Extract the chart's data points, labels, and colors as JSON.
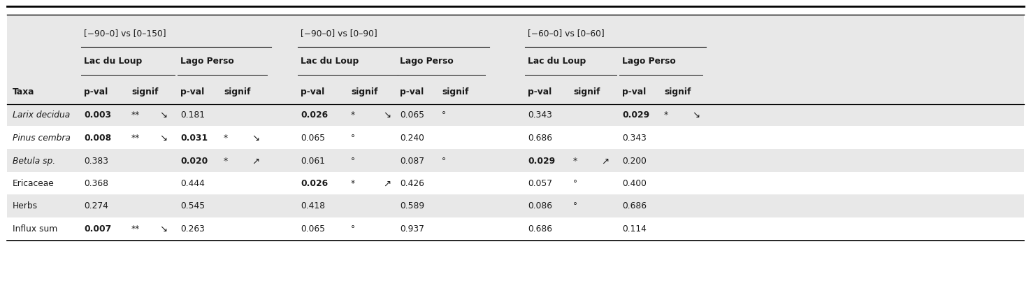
{
  "headers_level1": [
    "−90–0] vs [0–150]",
    "[−90–0] vs [0–90]",
    "[−60–0] vs [0–60]"
  ],
  "rows": [
    {
      "taxa": "Larix decidua",
      "italic": true,
      "c1_pval": "0.003",
      "c1_bold": true,
      "c1_sig": "**",
      "c1_arr": "↘",
      "c2_pval": "0.181",
      "c2_bold": false,
      "c2_sig": "",
      "c2_arr": "",
      "c3_pval": "0.026",
      "c3_bold": true,
      "c3_sig": "*",
      "c3_arr": "↘",
      "c4_pval": "0.065",
      "c4_bold": false,
      "c4_sig": "°",
      "c4_arr": "",
      "c5_pval": "0.343",
      "c5_bold": false,
      "c5_sig": "",
      "c5_arr": "",
      "c6_pval": "0.029",
      "c6_bold": true,
      "c6_sig": "*",
      "c6_arr": "↘"
    },
    {
      "taxa": "Pinus cembra",
      "italic": true,
      "c1_pval": "0.008",
      "c1_bold": true,
      "c1_sig": "**",
      "c1_arr": "↘",
      "c2_pval": "0.031",
      "c2_bold": true,
      "c2_sig": "*",
      "c2_arr": "↘",
      "c3_pval": "0.065",
      "c3_bold": false,
      "c3_sig": "°",
      "c3_arr": "",
      "c4_pval": "0.240",
      "c4_bold": false,
      "c4_sig": "",
      "c4_arr": "",
      "c5_pval": "0.686",
      "c5_bold": false,
      "c5_sig": "",
      "c5_arr": "",
      "c6_pval": "0.343",
      "c6_bold": false,
      "c6_sig": "",
      "c6_arr": ""
    },
    {
      "taxa": "Betula sp.",
      "italic": true,
      "c1_pval": "0.383",
      "c1_bold": false,
      "c1_sig": "",
      "c1_arr": "",
      "c2_pval": "0.020",
      "c2_bold": true,
      "c2_sig": "*",
      "c2_arr": "↗",
      "c3_pval": "0.061",
      "c3_bold": false,
      "c3_sig": "°",
      "c3_arr": "",
      "c4_pval": "0.087",
      "c4_bold": false,
      "c4_sig": "°",
      "c4_arr": "",
      "c5_pval": "0.029",
      "c5_bold": true,
      "c5_sig": "*",
      "c5_arr": "↗",
      "c6_pval": "0.200",
      "c6_bold": false,
      "c6_sig": "",
      "c6_arr": ""
    },
    {
      "taxa": "Ericaceae",
      "italic": false,
      "c1_pval": "0.368",
      "c1_bold": false,
      "c1_sig": "",
      "c1_arr": "",
      "c2_pval": "0.444",
      "c2_bold": false,
      "c2_sig": "",
      "c2_arr": "",
      "c3_pval": "0.026",
      "c3_bold": true,
      "c3_sig": "*",
      "c3_arr": "↗",
      "c4_pval": "0.426",
      "c4_bold": false,
      "c4_sig": "",
      "c4_arr": "",
      "c5_pval": "0.057",
      "c5_bold": false,
      "c5_sig": "°",
      "c5_arr": "",
      "c6_pval": "0.400",
      "c6_bold": false,
      "c6_sig": "",
      "c6_arr": ""
    },
    {
      "taxa": "Herbs",
      "italic": false,
      "c1_pval": "0.274",
      "c1_bold": false,
      "c1_sig": "",
      "c1_arr": "",
      "c2_pval": "0.545",
      "c2_bold": false,
      "c2_sig": "",
      "c2_arr": "",
      "c3_pval": "0.418",
      "c3_bold": false,
      "c3_sig": "",
      "c3_arr": "",
      "c4_pval": "0.589",
      "c4_bold": false,
      "c4_sig": "",
      "c4_arr": "",
      "c5_pval": "0.086",
      "c5_bold": false,
      "c5_sig": "°",
      "c5_arr": "",
      "c6_pval": "0.686",
      "c6_bold": false,
      "c6_sig": "",
      "c6_arr": ""
    },
    {
      "taxa": "Influx sum",
      "italic": false,
      "c1_pval": "0.007",
      "c1_bold": true,
      "c1_sig": "**",
      "c1_arr": "↘",
      "c2_pval": "0.263",
      "c2_bold": false,
      "c2_sig": "",
      "c2_arr": "",
      "c3_pval": "0.065",
      "c3_bold": false,
      "c3_sig": "°",
      "c3_arr": "",
      "c4_pval": "0.937",
      "c4_bold": false,
      "c4_sig": "",
      "c4_arr": "",
      "c5_pval": "0.686",
      "c5_bold": false,
      "c5_sig": "",
      "c5_arr": "",
      "c6_pval": "0.114",
      "c6_bold": false,
      "c6_sig": "",
      "c6_arr": ""
    }
  ],
  "bg_shaded": "#e8e8e8",
  "bg_white": "#ffffff"
}
